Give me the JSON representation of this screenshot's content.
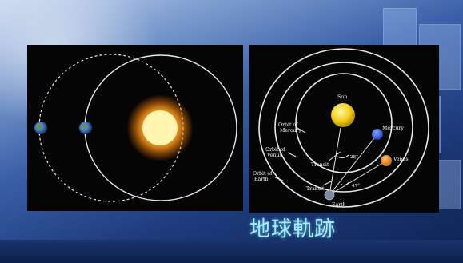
{
  "caption": "地球軌跡",
  "left_panel": {},
  "right_panel": {
    "labels": {
      "sun": "Sun",
      "mercury": "Mercury",
      "venus": "Venus",
      "earth": "Earth",
      "orbit_mercury_line1": "Orbit of",
      "orbit_mercury_line2": "Mercury",
      "orbit_venus_line1": "Orbit of",
      "orbit_venus_line2": "Venus",
      "orbit_earth_line1": "Orbit of",
      "orbit_earth_line2": "Earth",
      "transit_1": "Transit",
      "transit_2": "Transit",
      "angle_1": "28°",
      "angle_2": "47°"
    }
  },
  "colors": {
    "caption": "#a6ecff",
    "sun": "#ffd23a",
    "mercury": "#3a5fd8",
    "venus": "#e88a2a",
    "earth": "#3b6fb0"
  }
}
